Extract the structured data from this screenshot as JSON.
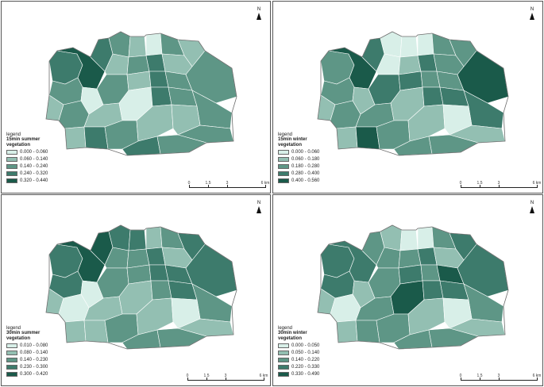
{
  "colors": {
    "c1": "#d8efe8",
    "c2": "#93bfb2",
    "c3": "#5e9686",
    "c4": "#3d7b6c",
    "c5": "#1a5a4a",
    "outline": "#6b6b6b",
    "panel_border": "#555555"
  },
  "north_label": "N",
  "scale": {
    "labels": [
      "0",
      "1.5",
      "3",
      "6 km"
    ]
  },
  "panels": [
    {
      "id": "15min-summer",
      "legend_title": "legend",
      "legend_subtitle": "15min summer",
      "legend_variable": "vegetation",
      "classes": [
        "0.000 - 0.060",
        "0.060 - 0.140",
        "0.140 - 0.240",
        "0.240 - 0.320",
        "0.320 - 0.440"
      ],
      "zone_classes": [
        4,
        5,
        4,
        3,
        2,
        1,
        3,
        2,
        2,
        3,
        4,
        2,
        3,
        1,
        3,
        2,
        4,
        3,
        3,
        2,
        3,
        2,
        1,
        4,
        3,
        3,
        2,
        4,
        3,
        2,
        2,
        3,
        4,
        3
      ]
    },
    {
      "id": "15min-winter",
      "legend_title": "legend",
      "legend_subtitle": "15min winter",
      "legend_variable": "vegetation",
      "classes": [
        "0.000 - 0.060",
        "0.060 - 0.180",
        "0.180 - 0.280",
        "0.280 - 0.400",
        "0.400 - 0.560"
      ],
      "zone_classes": [
        3,
        5,
        4,
        1,
        1,
        1,
        3,
        3,
        1,
        2,
        4,
        3,
        3,
        2,
        4,
        4,
        3,
        3,
        5,
        2,
        3,
        3,
        2,
        4,
        4,
        4,
        2,
        5,
        3,
        2,
        1,
        2,
        3,
        3
      ]
    },
    {
      "id": "30min-summer",
      "legend_title": "legend",
      "legend_subtitle": "30min summer",
      "legend_variable": "vegetation",
      "classes": [
        "0.010 - 0.080",
        "0.080 - 0.140",
        "0.140 - 0.230",
        "0.230 - 0.300",
        "0.300 - 0.420"
      ],
      "zone_classes": [
        4,
        5,
        5,
        4,
        4,
        2,
        3,
        4,
        3,
        3,
        4,
        2,
        4,
        1,
        3,
        3,
        4,
        4,
        4,
        2,
        1,
        2,
        2,
        3,
        4,
        3,
        2,
        2,
        3,
        2,
        1,
        2,
        3,
        3
      ]
    },
    {
      "id": "30min-winter",
      "legend_title": "legend",
      "legend_subtitle": "30min winter",
      "legend_variable": "vegetation",
      "classes": [
        "0.000 - 0.050",
        "0.050 - 0.140",
        "0.140 - 0.220",
        "0.220 - 0.330",
        "0.330 - 0.490"
      ],
      "zone_classes": [
        4,
        4,
        3,
        2,
        1,
        1,
        3,
        4,
        3,
        3,
        4,
        2,
        4,
        2,
        3,
        4,
        3,
        5,
        4,
        2,
        1,
        3,
        5,
        4,
        4,
        3,
        2,
        3,
        3,
        2,
        1,
        2,
        3,
        3
      ]
    }
  ]
}
